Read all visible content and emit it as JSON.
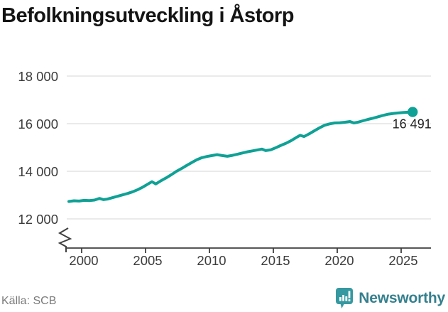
{
  "header": {
    "title": "Befolkningsutveckling i Åstorp"
  },
  "footer": {
    "source_label": "Källa: SCB",
    "brand": "Newsworthy"
  },
  "colors": {
    "line": "#0fa195",
    "grid": "#e4e4e4",
    "axis": "#3f3f3f",
    "tick_label": "#3c3c3c",
    "title": "#141414",
    "end_label": "#1f1f1f",
    "source": "#7a7a7a",
    "brand_text": "#35808e",
    "brand_icon": "#3699a1"
  },
  "chart_data": {
    "type": "line",
    "title": "Befolkningsutveckling i Åstorp",
    "series_name": "Befolkning",
    "xlabel": "",
    "ylabel": "",
    "grid": "horizontal",
    "legend": "none",
    "axis_break_bottom_left": true,
    "x_ticks": [
      2000,
      2005,
      2010,
      2015,
      2020,
      2025
    ],
    "x_tick_labels": [
      "2000",
      "2005",
      "2010",
      "2015",
      "2020",
      "2025"
    ],
    "y_ticks": [
      12000,
      14000,
      16000,
      18000
    ],
    "y_tick_labels": [
      "12 000",
      "14 000",
      "16 000",
      "18 000"
    ],
    "xlim": [
      1999,
      2026.4
    ],
    "ylim": [
      11800,
      18300
    ],
    "end_label": "16 491",
    "end_value": 16491,
    "x": [
      1999.0,
      1999.4,
      1999.8,
      2000.2,
      2000.6,
      2001.0,
      2001.4,
      2001.7,
      2002.0,
      2002.4,
      2002.8,
      2003.2,
      2003.6,
      2004.0,
      2004.4,
      2004.8,
      2005.2,
      2005.5,
      2005.8,
      2006.2,
      2006.6,
      2007.0,
      2007.4,
      2007.8,
      2008.2,
      2008.6,
      2009.0,
      2009.4,
      2009.8,
      2010.2,
      2010.6,
      2011.0,
      2011.4,
      2011.8,
      2012.2,
      2012.6,
      2013.0,
      2013.4,
      2013.8,
      2014.1,
      2014.4,
      2014.8,
      2015.2,
      2015.6,
      2016.0,
      2016.4,
      2016.8,
      2017.1,
      2017.4,
      2017.8,
      2018.2,
      2018.6,
      2019.0,
      2019.4,
      2019.8,
      2020.2,
      2020.6,
      2021.0,
      2021.3,
      2021.6,
      2022.0,
      2022.4,
      2022.8,
      2023.2,
      2023.6,
      2024.0,
      2024.4,
      2024.8,
      2025.2,
      2025.6,
      2025.9
    ],
    "values": [
      12730,
      12760,
      12750,
      12780,
      12770,
      12790,
      12860,
      12810,
      12830,
      12890,
      12950,
      13010,
      13070,
      13140,
      13230,
      13340,
      13470,
      13560,
      13470,
      13600,
      13720,
      13850,
      13990,
      14110,
      14240,
      14360,
      14480,
      14570,
      14620,
      14660,
      14700,
      14660,
      14630,
      14670,
      14720,
      14770,
      14820,
      14860,
      14900,
      14930,
      14870,
      14900,
      14990,
      15090,
      15180,
      15290,
      15420,
      15510,
      15460,
      15570,
      15700,
      15820,
      15930,
      15990,
      16030,
      16040,
      16060,
      16090,
      16030,
      16060,
      16120,
      16180,
      16230,
      16290,
      16350,
      16400,
      16430,
      16450,
      16470,
      16480,
      16491
    ]
  }
}
